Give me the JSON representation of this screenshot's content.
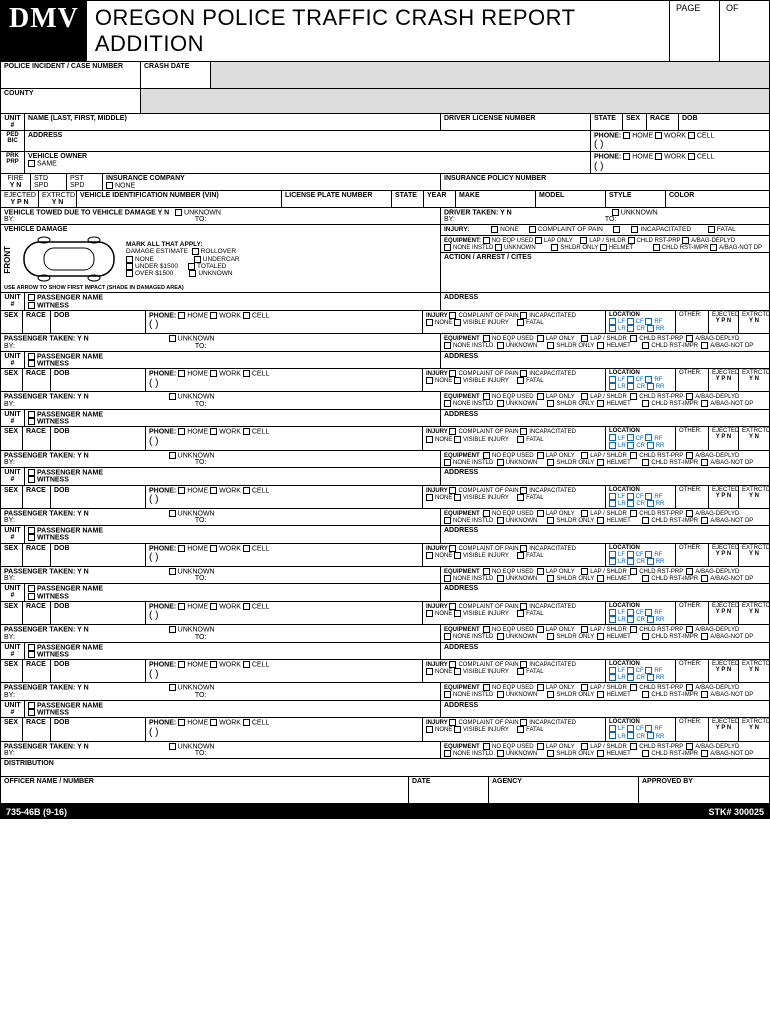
{
  "header": {
    "dmv": "DMV",
    "title": "OREGON POLICE TRAFFIC CRASH REPORT ADDITION",
    "page": "PAGE",
    "of": "OF"
  },
  "top": {
    "incident": "POLICE INCIDENT / CASE NUMBER",
    "crashDate": "CRASH DATE",
    "county": "COUNTY"
  },
  "driver": {
    "unit": "UNIT",
    "hash": "#",
    "name": "NAME (LAST, FIRST, MIDDLE)",
    "dln": "DRIVER LICENSE NUMBER",
    "state": "STATE",
    "sex": "SEX",
    "race": "RACE",
    "dob": "DOB",
    "ped": "PED",
    "bic": "BIC",
    "prk": "PRK",
    "prp": "PRP",
    "address": "ADDRESS",
    "phone": "PHONE:",
    "home": "HOME",
    "work": "WORK",
    "cellp": "CELL",
    "owner": "VEHICLE OWNER",
    "same": "SAME"
  },
  "vehicle": {
    "fire": "FIRE",
    "yn": "Y  N",
    "stdspd": "STD SPD",
    "pstspd": "PST SPD",
    "insco": "INSURANCE COMPANY",
    "none": "NONE",
    "inspol": "INSURANCE POLICY NUMBER",
    "ejected": "EJECTED",
    "ypn": "Y P N",
    "extrctd": "EXTRCTD",
    "vin": "VEHICLE IDENTIFICATION NUMBER (VIN)",
    "plate": "LICENSE PLATE NUMBER",
    "state": "STATE",
    "year": "YEAR",
    "make": "MAKE",
    "model": "MODEL",
    "style": "STYLE",
    "color": "COLOR",
    "towed": "VEHICLE TOWED DUE TO VEHICLE DAMAGE  Y     N",
    "unknown": "UNKNOWN",
    "by": "BY:",
    "to": "TO:",
    "drvtaken": "DRIVER TAKEN:      Y     N"
  },
  "damage": {
    "title": "VEHICLE DAMAGE",
    "front": "FRONT",
    "mark": "MARK ALL THAT APPLY:",
    "dmgest": "DAMAGE ESTIMATE",
    "rollover": "ROLLOVER",
    "none": "NONE",
    "undercar": "UNDERCAR",
    "under1500": "UNDER $1500",
    "totaled": "TOTALED",
    "over1500": "OVER $1500",
    "unknown": "UNKNOWN",
    "arrow": "USE ARROW TO SHOW FIRST IMPACT (SHADE IN DAMAGED AREA)"
  },
  "injury": {
    "title": "INJURY:",
    "none": "NONE",
    "complaint": "COMPLAINT OF PAIN",
    "visible": "VISIBLE INJURY",
    "incap": "INCAPACITATED",
    "fatal": "FATAL",
    "equipment": "EQUIPMENT:",
    "noeqp": "NO EQP USED",
    "laponly": "LAP ONLY",
    "lapshldr": "LAP / SHLDR",
    "chldrst": "CHLD RST-PRP",
    "abagdep": "A/BAG-DEPLYD",
    "noneinst": "NONE INSTLD",
    "unknown": "UNKNOWN",
    "shldronly": "SHLDR ONLY",
    "helmet": "HELMET",
    "chldrstimpr": "CHLD RST-IMPR",
    "abagnot": "A/BAG-NOT DP",
    "action": "ACTION / ARREST / CITES"
  },
  "pass": {
    "unit": "UNIT",
    "hash": "#",
    "pname": "PASSENGER NAME",
    "witness": "WITNESS",
    "address": "ADDRESS",
    "sex": "SEX",
    "race": "RACE",
    "dob": "DOB",
    "phone": "PHONE:",
    "home": "HOME",
    "work": "WORK",
    "cellp": "CELL",
    "injury": "INJURY",
    "complaint": "COMPLAINT OF PAIN",
    "incap": "INCAPACITATED",
    "none": "NONE",
    "visinj": "VISIBLE INJURY",
    "fatal": "FATAL",
    "location": "LOCATION",
    "lf": "LF",
    "cf": "CF",
    "rf": "RF",
    "lr": "LR",
    "cr": "CR",
    "rr": "RR",
    "other": "OTHER:",
    "ejected": "EJECTED",
    "extrctd": "EXTRCTD",
    "ypn": "Y P N",
    "yn": "Y  N",
    "taken": "PASSENGER TAKEN:     Y     N",
    "unknown": "UNKNOWN",
    "by": "BY:",
    "to": "TO:",
    "equipment": "EQUIPMENT",
    "noeqp": "NO EQP USED",
    "laponly": "LAP ONLY",
    "lapshldr": "LAP / SHLDR",
    "chldrst": "CHLD RST-PRP",
    "abagdep": "A/BAG-DEPLYD",
    "noneinst": "NONE INSTLD",
    "shldronly": "SHLDR ONLY",
    "helmet": "HELMET",
    "chldrstimpr": "CHLD RST-IMPR",
    "abagnot": "A/BAG-NOT DP"
  },
  "footer": {
    "dist": "DISTRIBUTION",
    "officer": "OFFICER NAME / NUMBER",
    "date": "DATE",
    "agency": "AGENCY",
    "approved": "APPROVED BY",
    "form": "735-46B (9-16)",
    "stk": "STK# 300025"
  }
}
